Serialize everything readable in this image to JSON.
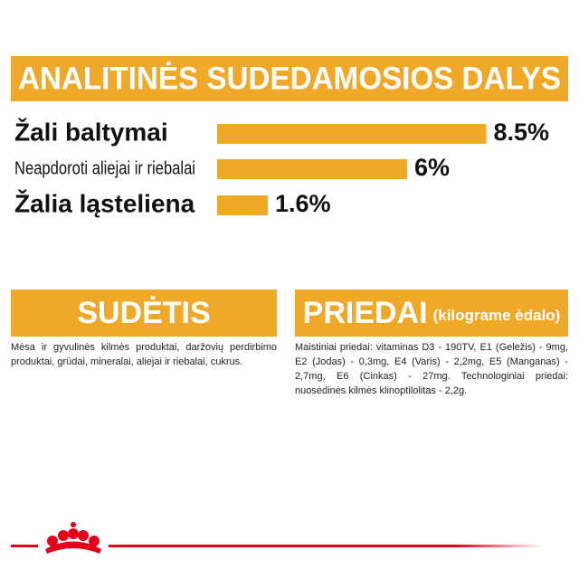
{
  "chart_data": {
    "type": "bar",
    "orientation": "horizontal",
    "title": "ANALITINĖS SUDEDAMOSIOS DALYS",
    "categories": [
      "Žali baltymai",
      "Neapdoroti aliejai ir riebalai",
      "Žalia ląsteliena"
    ],
    "values": [
      8.5,
      6,
      1.6
    ],
    "value_labels": [
      "8.5%",
      "6%",
      "1.6%"
    ],
    "color": "#f0a829"
  },
  "composition": {
    "title": "SUDĖTIS",
    "text": "Mėsa ir gyvulinės kilmės produktai, daržovių perdirbimo produktai, grūdai, mineralai, aliejai ir riebalai, cukrus."
  },
  "additives": {
    "title": "PRIEDAI",
    "subtitle": "(kilograme ėdalo)",
    "text": "Maistiniai priedai: vitaminas D3 - 190TV, E1 (Geležis) - 9mg, E2 (Jodas) - 0,3mg, E4 (Varis) - 2,2mg, E5 (Manganas) - 2,7mg, E6 (Cinkas) - 27mg. Technologiniai priedai: nuosėdinės kilmės klinoptilolitas - 2,2g."
  }
}
